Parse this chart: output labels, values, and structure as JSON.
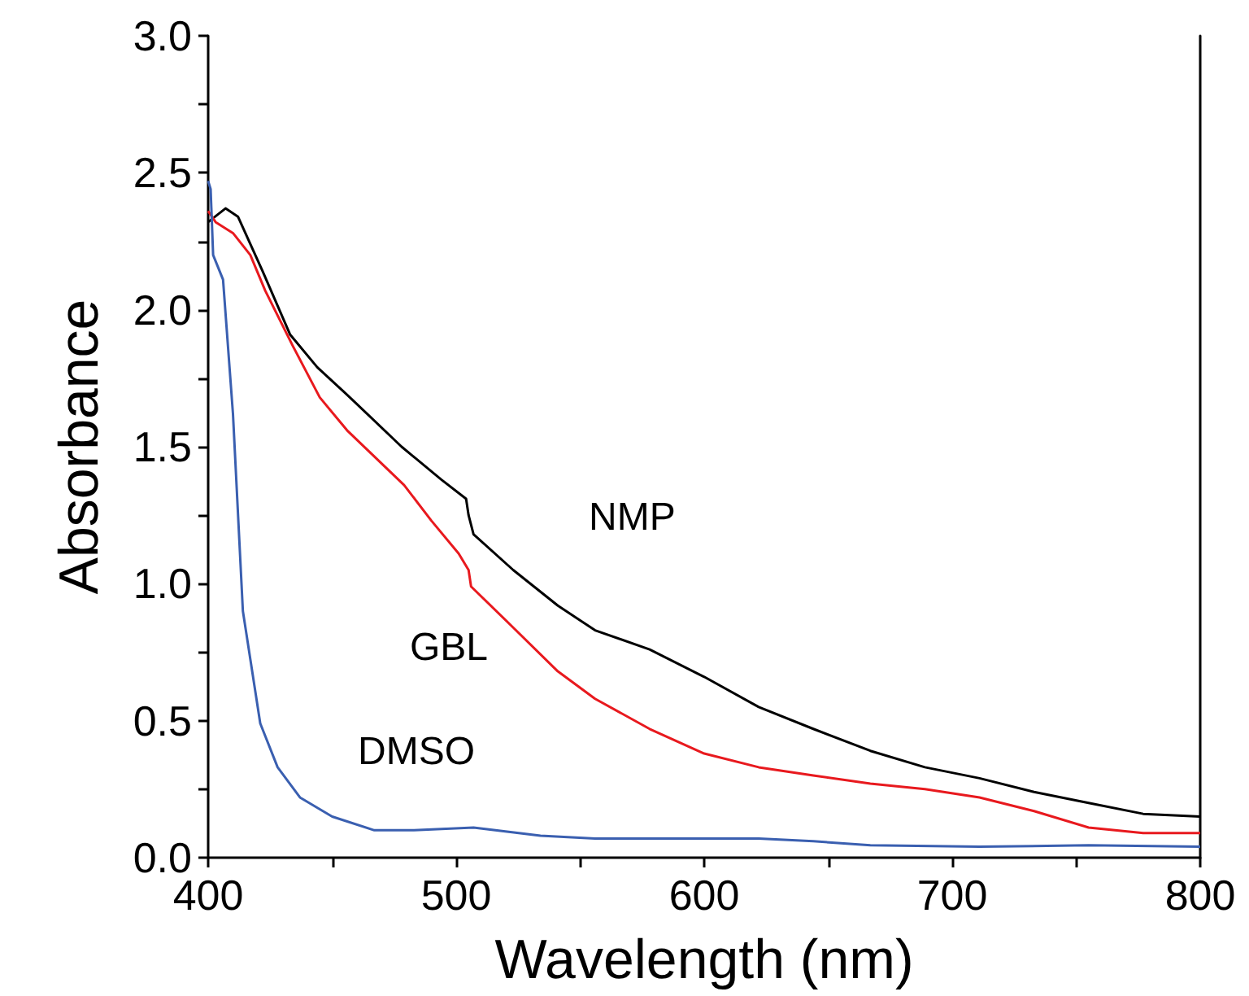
{
  "chart_data": {
    "type": "line",
    "xlabel": "Wavelength (nm)",
    "ylabel": "Absorbance",
    "xlim": [
      400,
      800
    ],
    "xticks": [
      400,
      {
        "value": 450,
        "label": null
      },
      500,
      {
        "value": 550,
        "label": null
      },
      600,
      {
        "value": 650,
        "label": null
      },
      700,
      {
        "value": 750,
        "label": null
      },
      800
    ],
    "ylim": [
      0,
      3
    ],
    "yticks": [
      {
        "value": 0,
        "label": "0.0"
      },
      {
        "value": 0.25,
        "label": null
      },
      {
        "value": 0.5,
        "label": "0.5"
      },
      {
        "value": 0.75,
        "label": null
      },
      {
        "value": 1,
        "label": "1.0"
      },
      {
        "value": 1.25,
        "label": null
      },
      {
        "value": 1.5,
        "label": "1.5"
      },
      {
        "value": 1.75,
        "label": null
      },
      {
        "value": 2,
        "label": "2.0"
      },
      {
        "value": 2.25,
        "label": null
      },
      {
        "value": 2.5,
        "label": "2.5"
      },
      {
        "value": 2.75,
        "label": null
      },
      {
        "value": 3,
        "label": "3.0"
      }
    ],
    "grid": false,
    "marker": "none",
    "line_style": "solid",
    "series": [
      {
        "color": "#000000",
        "x": [
          400,
          407,
          412,
          422,
          433,
          444,
          456,
          478,
          494,
          504,
          505,
          507,
          523,
          541,
          556,
          578,
          600,
          622,
          644,
          667,
          689,
          711,
          733,
          755,
          777,
          800
        ],
        "values": [
          2.32,
          2.37,
          2.34,
          2.14,
          1.91,
          1.79,
          1.69,
          1.5,
          1.38,
          1.31,
          1.25,
          1.18,
          1.05,
          0.92,
          0.83,
          0.76,
          0.66,
          0.55,
          0.47,
          0.39,
          0.33,
          0.29,
          0.24,
          0.2,
          0.16,
          0.15
        ]
      },
      {
        "color": "#e8191e",
        "x": [
          400,
          403,
          410,
          417,
          423,
          434,
          445,
          456,
          479,
          490,
          501,
          505,
          506,
          523,
          541,
          556,
          578,
          600,
          622,
          644,
          667,
          689,
          711,
          733,
          755,
          777,
          800
        ],
        "values": [
          2.36,
          2.32,
          2.28,
          2.2,
          2.07,
          1.87,
          1.68,
          1.56,
          1.36,
          1.23,
          1.11,
          1.05,
          0.99,
          0.84,
          0.68,
          0.58,
          0.47,
          0.38,
          0.33,
          0.3,
          0.27,
          0.25,
          0.22,
          0.17,
          0.11,
          0.09,
          0.09
        ]
      },
      {
        "color": "#3a5fb0",
        "x": [
          400,
          401,
          402,
          406,
          410,
          414,
          421,
          428,
          437,
          450,
          467,
          483,
          507,
          534,
          556,
          600,
          622,
          644,
          667,
          711,
          755,
          800
        ],
        "values": [
          2.47,
          2.44,
          2.2,
          2.11,
          1.62,
          0.9,
          0.49,
          0.33,
          0.22,
          0.15,
          0.1,
          0.1,
          0.11,
          0.08,
          0.07,
          0.07,
          0.07,
          0.06,
          0.045,
          0.04,
          0.045,
          0.04
        ]
      }
    ],
    "annotations": [
      "NMP",
      "GBL",
      "DMSO"
    ]
  }
}
